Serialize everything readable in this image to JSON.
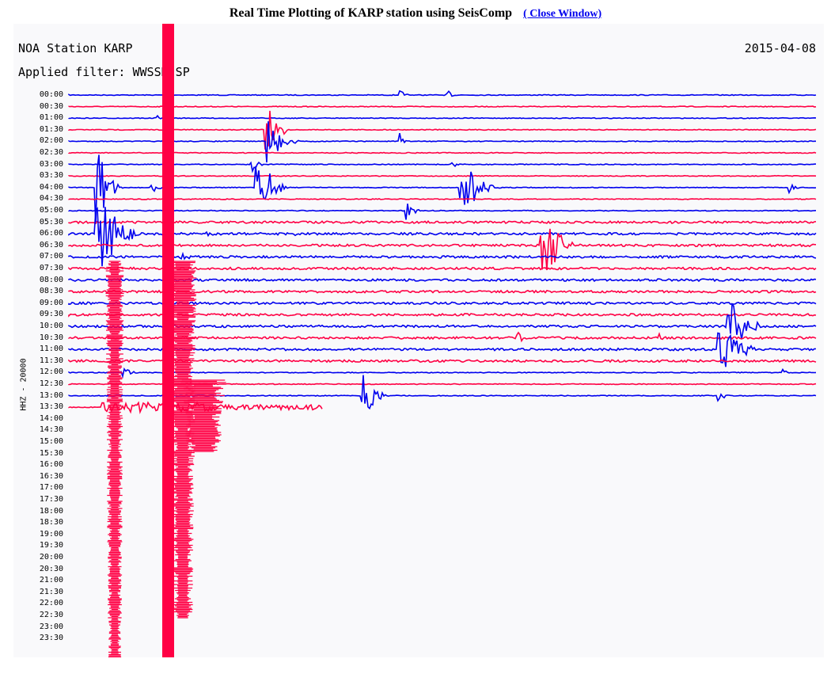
{
  "header": {
    "title": "Real Time Plotting of KARP station using SeisComp",
    "close_link": "( Close Window)"
  },
  "plot": {
    "station": "NOA Station KARP",
    "filter": "Applied filter: WWSSN-SP",
    "date": "2015-04-08",
    "channel": "HHZ - 20000",
    "trace_colors": [
      "#0000ee",
      "#ff0044"
    ],
    "time_ticks": [
      "00:00",
      "00:30",
      "01:00",
      "01:30",
      "02:00",
      "02:30",
      "03:00",
      "03:30",
      "04:00",
      "04:30",
      "05:00",
      "05:30",
      "06:00",
      "06:30",
      "07:00",
      "07:30",
      "08:00",
      "08:30",
      "09:00",
      "09:30",
      "10:00",
      "10:30",
      "11:00",
      "11:30",
      "12:00",
      "12:30",
      "13:00",
      "13:30",
      "14:00",
      "14:30",
      "15:00",
      "15:30",
      "16:00",
      "16:30",
      "17:00",
      "17:30",
      "18:00",
      "18:30",
      "19:00",
      "19:30",
      "20:00",
      "20:30",
      "21:00",
      "21:30",
      "22:00",
      "22:30",
      "23:00",
      "23:30"
    ],
    "recorded_lines": 28
  }
}
